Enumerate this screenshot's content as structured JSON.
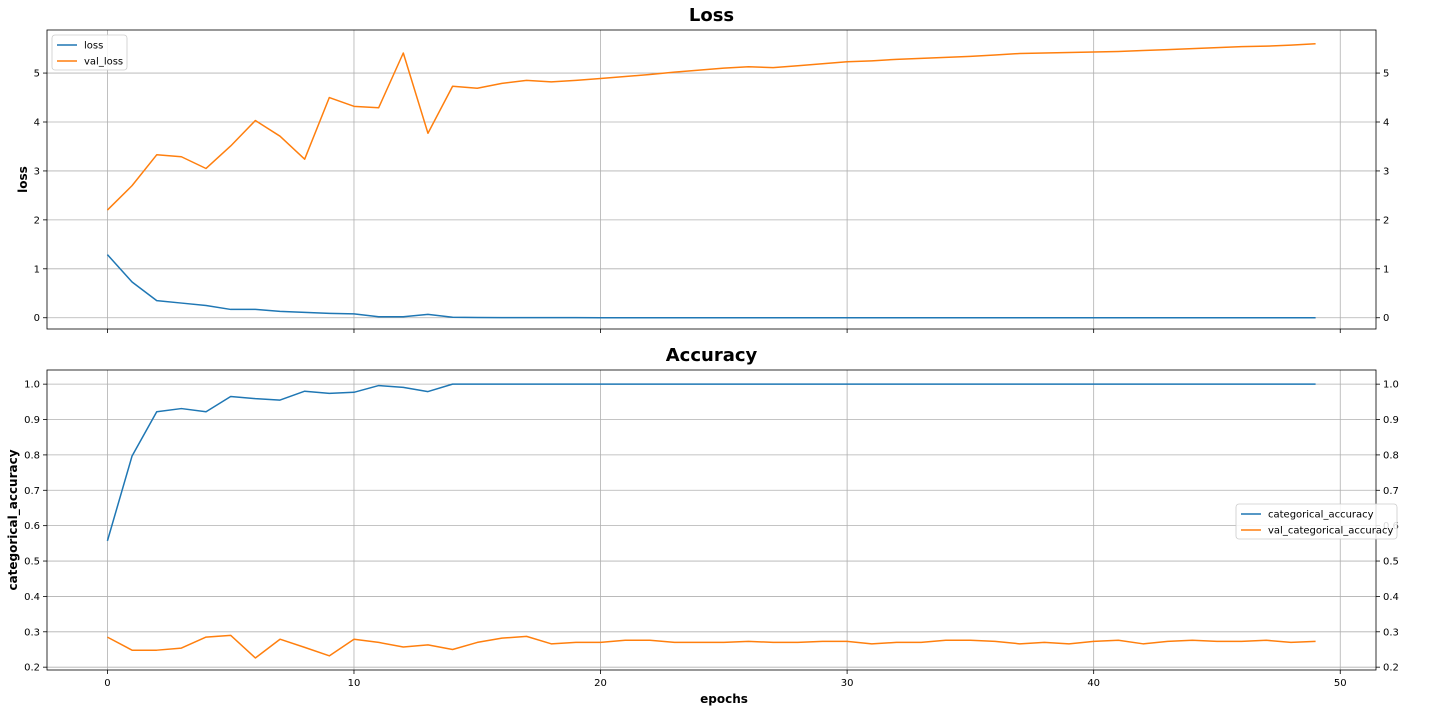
{
  "colors": {
    "series_a": "#1f77b4",
    "series_b": "#ff7f0e"
  },
  "xlabel": "epochs",
  "chart_data": [
    {
      "type": "line",
      "title": "Loss",
      "ylabel": "loss",
      "xlim": [
        -2.45,
        51.45
      ],
      "ylim": [
        -0.23,
        5.88
      ],
      "xticks": [
        0,
        10,
        20,
        30,
        40,
        50
      ],
      "yticks": [
        0,
        1,
        2,
        3,
        4,
        5
      ],
      "grid": true,
      "legend": "upper-left",
      "x": [
        0,
        1,
        2,
        3,
        4,
        5,
        6,
        7,
        8,
        9,
        10,
        11,
        12,
        13,
        14,
        15,
        16,
        17,
        18,
        19,
        20,
        21,
        22,
        23,
        24,
        25,
        26,
        27,
        28,
        29,
        30,
        31,
        32,
        33,
        34,
        35,
        36,
        37,
        38,
        39,
        40,
        41,
        42,
        43,
        44,
        45,
        46,
        47,
        48,
        49
      ],
      "series": [
        {
          "name": "loss",
          "color": "#1f77b4",
          "values": [
            1.29,
            0.73,
            0.35,
            0.3,
            0.25,
            0.17,
            0.17,
            0.13,
            0.11,
            0.09,
            0.08,
            0.02,
            0.02,
            0.07,
            0.01,
            0.005,
            0.003,
            0.002,
            0.002,
            0.002,
            0.001,
            0.001,
            0.001,
            0.001,
            0.001,
            0.001,
            0.001,
            0.001,
            0.001,
            0.001,
            0.001,
            0.001,
            0.001,
            0.001,
            0.001,
            0.001,
            0.001,
            0.001,
            0.001,
            0.001,
            0.001,
            0.001,
            0.001,
            0.001,
            0.001,
            0.001,
            0.001,
            0.001,
            0.001,
            0.001
          ]
        },
        {
          "name": "val_loss",
          "color": "#ff7f0e",
          "values": [
            2.2,
            2.7,
            3.33,
            3.29,
            3.05,
            3.51,
            4.03,
            3.71,
            3.24,
            4.5,
            4.32,
            4.29,
            5.41,
            3.77,
            4.73,
            4.69,
            4.79,
            4.85,
            4.82,
            4.85,
            4.89,
            4.93,
            4.97,
            5.02,
            5.06,
            5.1,
            5.13,
            5.11,
            5.15,
            5.19,
            5.23,
            5.25,
            5.28,
            5.3,
            5.32,
            5.34,
            5.37,
            5.4,
            5.41,
            5.42,
            5.43,
            5.44,
            5.46,
            5.48,
            5.5,
            5.52,
            5.54,
            5.55,
            5.57,
            5.6
          ]
        }
      ]
    },
    {
      "type": "line",
      "title": "Accuracy",
      "ylabel": "categorical_accuracy",
      "xlim": [
        -2.45,
        51.45
      ],
      "ylim": [
        0.192,
        1.04
      ],
      "xticks": [
        0,
        10,
        20,
        30,
        40,
        50
      ],
      "yticks": [
        0.2,
        0.3,
        0.4,
        0.5,
        0.6,
        0.7,
        0.8,
        0.9,
        1.0
      ],
      "ytick_labels": [
        "0.2",
        "0.3",
        "0.4",
        "0.5",
        "0.6",
        "0.7",
        "0.8",
        "0.9",
        "1.0"
      ],
      "grid": true,
      "legend": "center-right",
      "x": [
        0,
        1,
        2,
        3,
        4,
        5,
        6,
        7,
        8,
        9,
        10,
        11,
        12,
        13,
        14,
        15,
        16,
        17,
        18,
        19,
        20,
        21,
        22,
        23,
        24,
        25,
        26,
        27,
        28,
        29,
        30,
        31,
        32,
        33,
        34,
        35,
        36,
        37,
        38,
        39,
        40,
        41,
        42,
        43,
        44,
        45,
        46,
        47,
        48,
        49
      ],
      "series": [
        {
          "name": "categorical_accuracy",
          "color": "#1f77b4",
          "values": [
            0.557,
            0.797,
            0.922,
            0.931,
            0.922,
            0.965,
            0.959,
            0.955,
            0.98,
            0.974,
            0.977,
            0.996,
            0.991,
            0.979,
            1.0,
            1.0,
            1.0,
            1.0,
            1.0,
            1.0,
            1.0,
            1.0,
            1.0,
            1.0,
            1.0,
            1.0,
            1.0,
            1.0,
            1.0,
            1.0,
            1.0,
            1.0,
            1.0,
            1.0,
            1.0,
            1.0,
            1.0,
            1.0,
            1.0,
            1.0,
            1.0,
            1.0,
            1.0,
            1.0,
            1.0,
            1.0,
            1.0,
            1.0,
            1.0,
            1.0
          ]
        },
        {
          "name": "val_categorical_accuracy",
          "color": "#ff7f0e",
          "values": [
            0.285,
            0.248,
            0.248,
            0.254,
            0.285,
            0.29,
            0.226,
            0.279,
            0.256,
            0.232,
            0.279,
            0.27,
            0.257,
            0.263,
            0.25,
            0.27,
            0.282,
            0.287,
            0.266,
            0.27,
            0.27,
            0.276,
            0.276,
            0.27,
            0.27,
            0.27,
            0.273,
            0.27,
            0.27,
            0.273,
            0.273,
            0.266,
            0.27,
            0.27,
            0.276,
            0.276,
            0.273,
            0.266,
            0.27,
            0.266,
            0.273,
            0.276,
            0.266,
            0.273,
            0.276,
            0.273,
            0.273,
            0.276,
            0.27,
            0.273
          ]
        }
      ]
    }
  ]
}
